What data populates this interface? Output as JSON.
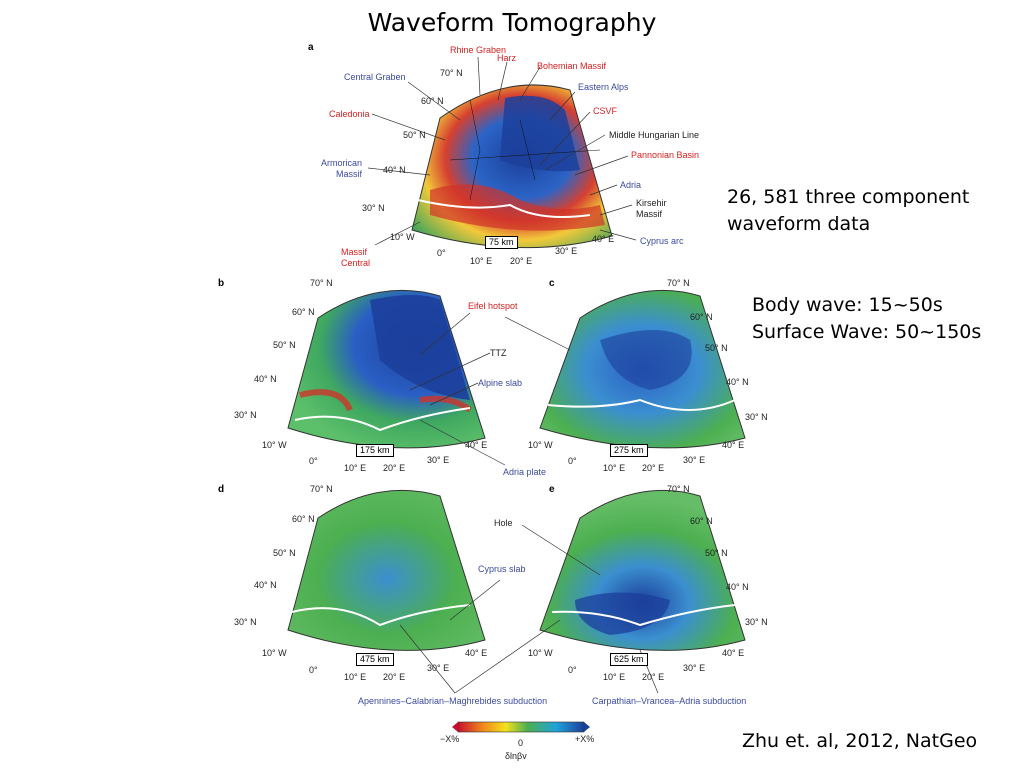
{
  "title": "Waveform Tomography",
  "notes": {
    "data_count_line1": "26, 581 three component",
    "data_count_line2": "waveform data",
    "body_wave": "Body wave: 15~50s",
    "surface_wave": "Surface Wave: 50~150s",
    "citation": "Zhu et. al, 2012, NatGeo"
  },
  "panels": {
    "a": {
      "letter": "a",
      "depth": "75 km"
    },
    "b": {
      "letter": "b",
      "depth": "175 km"
    },
    "c": {
      "letter": "c",
      "depth": "275 km"
    },
    "d": {
      "letter": "d",
      "depth": "475 km"
    },
    "e": {
      "letter": "e",
      "depth": "625 km"
    }
  },
  "coords": {
    "n70": "70° N",
    "n60": "60° N",
    "n50": "50° N",
    "n40": "40° N",
    "n30": "30° N",
    "w10": "10° W",
    "z0": "0°",
    "e10": "10° E",
    "e20": "20° E",
    "e30": "30° E",
    "e40": "40° E"
  },
  "labels_a": {
    "rhine_graben": "Rhine Graben",
    "harz": "Harz",
    "bohemian_massif": "Bohemian Massif",
    "central_graben": "Central Graben",
    "eastern_alps": "Eastern Alps",
    "caledonia": "Caledonia",
    "csvf": "CSVF",
    "middle_hungarian_line": "Middle Hungarian Line",
    "pannonian_basin": "Pannonian Basin",
    "armorican_massif_1": "Armorican",
    "armorican_massif_2": "Massif",
    "adria": "Adria",
    "kirsehir_massif_1": "Kirsehir",
    "kirsehir_massif_2": "Massif",
    "cyprus_arc": "Cyprus arc",
    "massif_central_1": "Massif",
    "massif_central_2": "Central"
  },
  "labels_bc": {
    "eifel_hotspot": "Eifel hotspot",
    "ttz": "TTZ",
    "alpine_slab": "Alpine slab",
    "adria_plate": "Adria plate"
  },
  "labels_de": {
    "hole": "Hole",
    "cyprus_slab": "Cyprus slab",
    "apennines": "Apennines–Calabrian–Maghrebides subduction",
    "carpathian": "Carpathian–Vrancea–Adria subduction"
  },
  "colorbar": {
    "min_label": "−X%",
    "mid_label": "0",
    "max_label": "+X%",
    "axis_label": "δlnβv",
    "colors": [
      "#c8102e",
      "#f08a1c",
      "#f5e11b",
      "#4caf50",
      "#1fa3d8",
      "#1c3f9b"
    ]
  }
}
